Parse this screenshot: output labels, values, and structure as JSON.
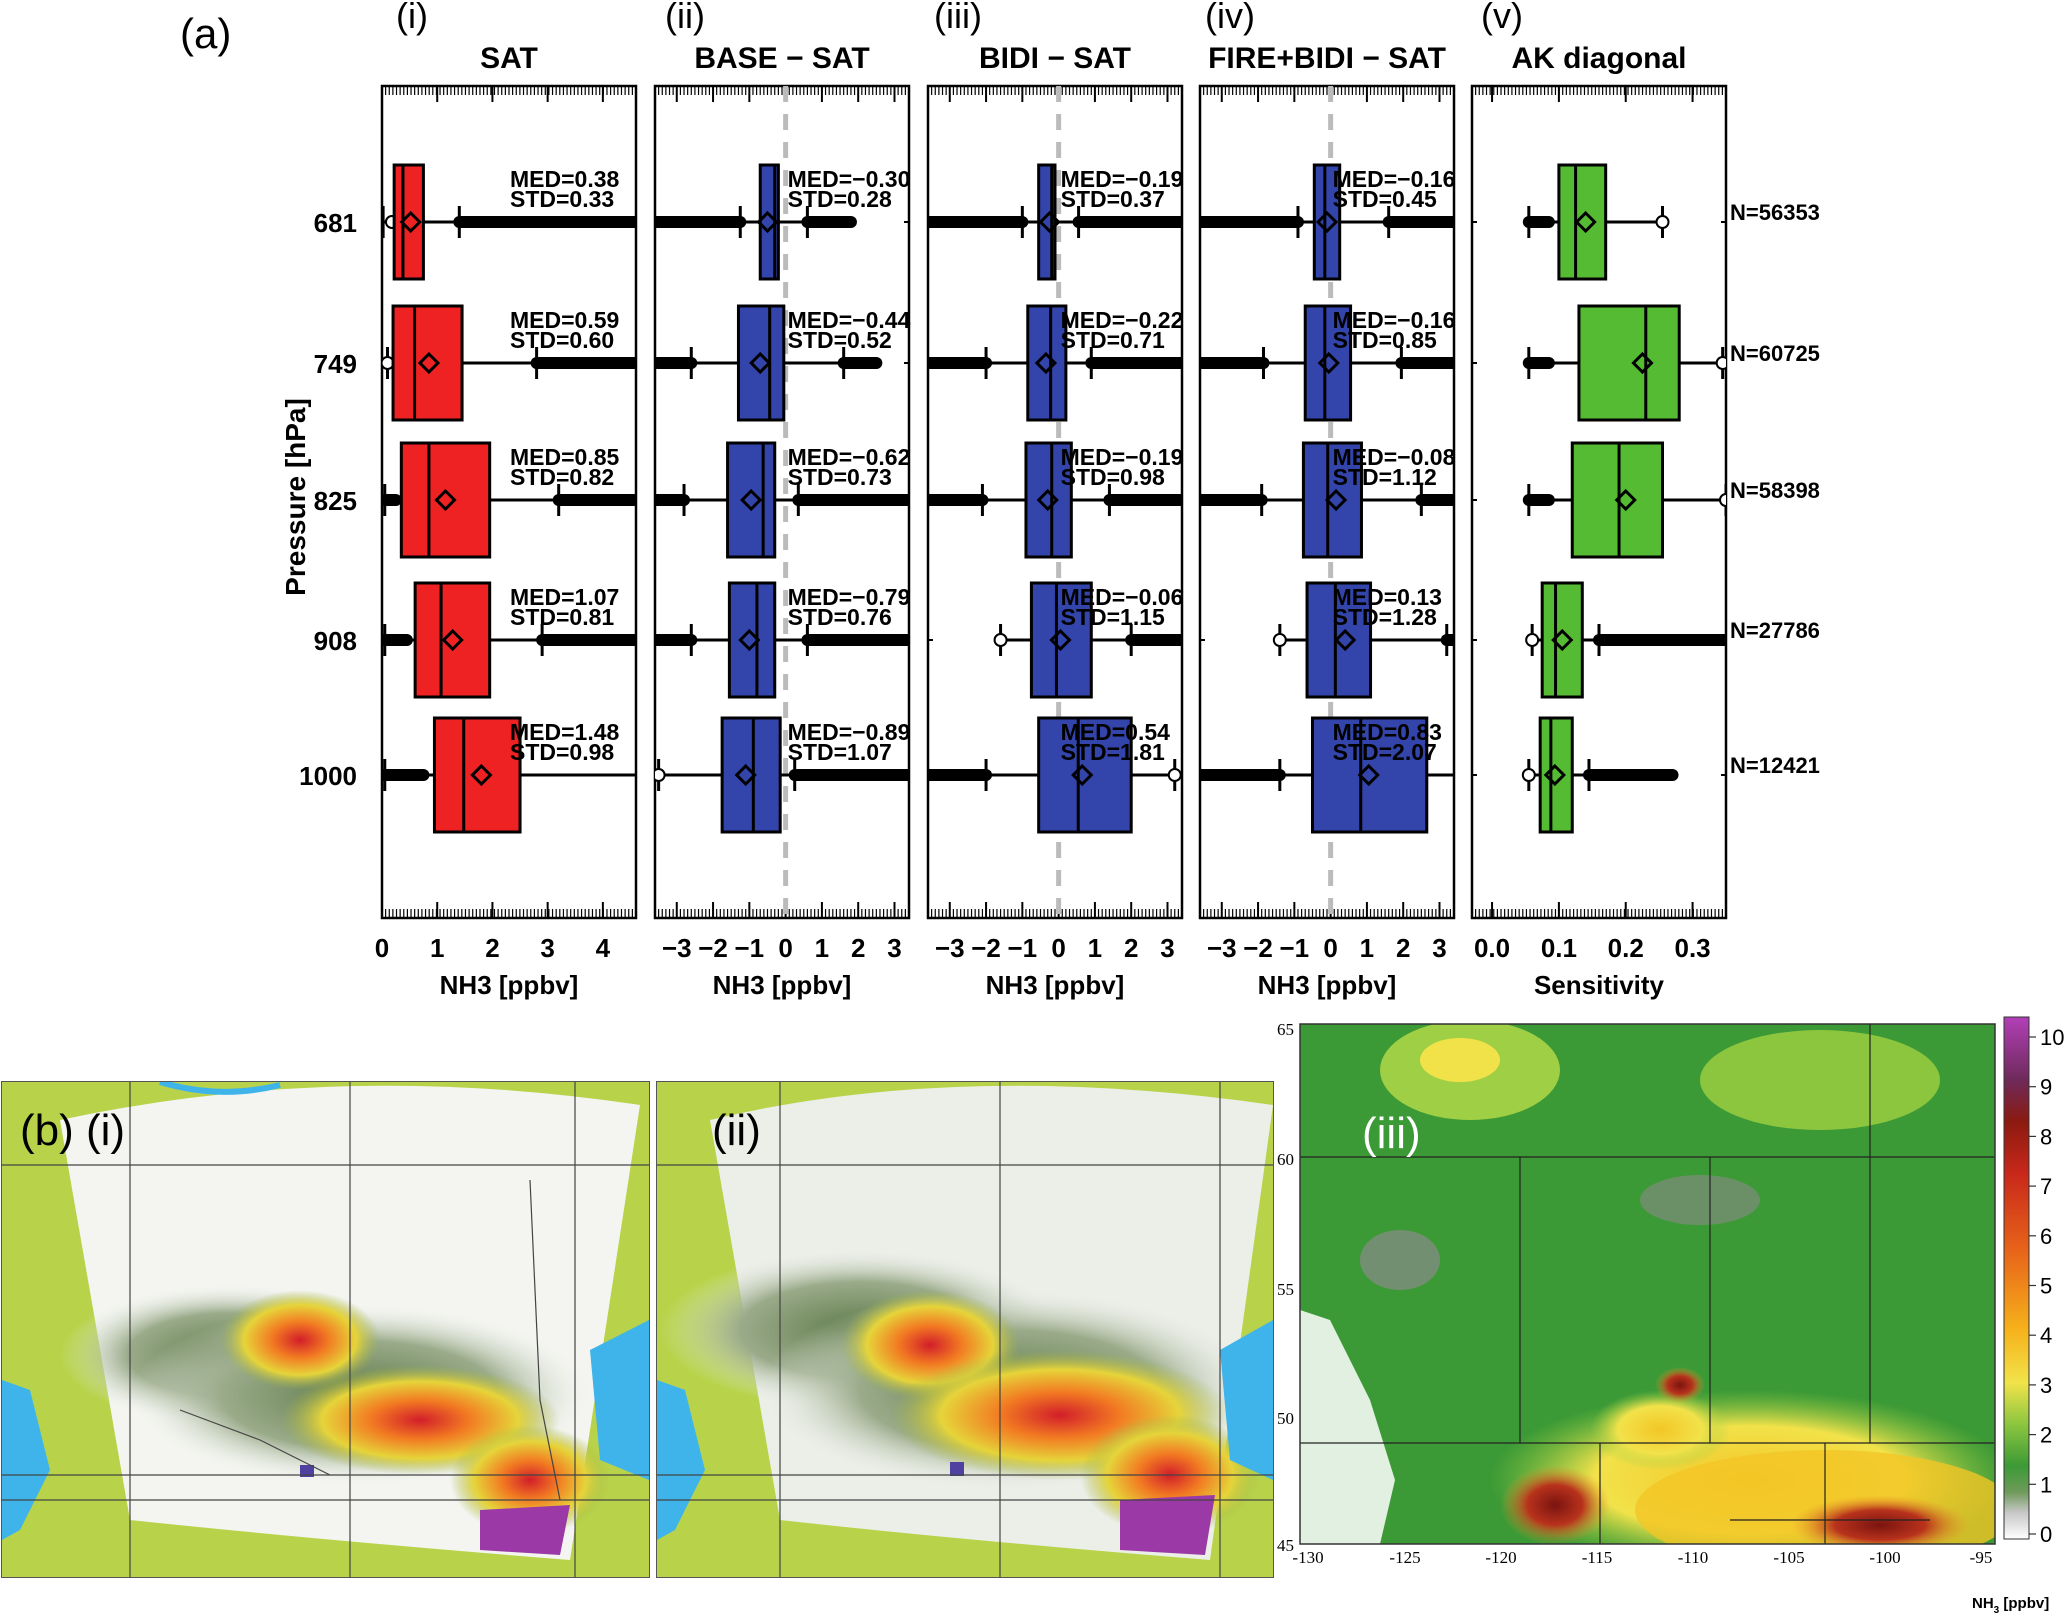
{
  "panel_a": {
    "label": "(a)",
    "ylabel": "Pressure [hPa]",
    "levels": [
      "681",
      "749",
      "825",
      "908",
      "1000"
    ],
    "n_labels": [
      "N=56353",
      "N=60725",
      "N=58398",
      "N=27786",
      "N=12421"
    ]
  },
  "chart_data": [
    {
      "type": "box",
      "numeral": "(i)",
      "title": "SAT",
      "xlabel": "NH3 [ppbv]",
      "xlim": [
        0,
        4.6
      ],
      "xticks": [
        0,
        1,
        2,
        3,
        4
      ],
      "xtick_labels": [
        "0",
        "1",
        "2",
        "3",
        "4"
      ],
      "color": "#ee2222",
      "zero_line": false,
      "boxes": [
        {
          "level": "681",
          "q1": 0.22,
          "median": 0.38,
          "q3": 0.75,
          "mean": 0.52,
          "wlo": 0.02,
          "whi": 1.4,
          "flo": [
            0.18
          ],
          "fhi": [
            1.4,
            4.6
          ],
          "med_label": "MED=0.38",
          "std_label": "STD=0.33"
        },
        {
          "level": "749",
          "q1": 0.2,
          "median": 0.59,
          "q3": 1.45,
          "mean": 0.85,
          "wlo": 0.1,
          "whi": 2.8,
          "flo": [
            0.1
          ],
          "fhi": [
            2.8,
            4.6
          ],
          "med_label": "MED=0.59",
          "std_label": "STD=0.60"
        },
        {
          "level": "825",
          "q1": 0.35,
          "median": 0.85,
          "q3": 1.95,
          "mean": 1.15,
          "wlo": 0.05,
          "whi": 3.2,
          "flo": [
            0.05,
            0.25
          ],
          "fhi": [
            3.2,
            4.6
          ],
          "med_label": "MED=0.85",
          "std_label": "STD=0.82"
        },
        {
          "level": "908",
          "q1": 0.6,
          "median": 1.07,
          "q3": 1.95,
          "mean": 1.28,
          "wlo": 0.05,
          "whi": 2.9,
          "flo": [
            0.05,
            0.45
          ],
          "fhi": [
            2.9,
            4.6
          ],
          "med_label": "MED=1.07",
          "std_label": "STD=0.81"
        },
        {
          "level": "1000",
          "q1": 0.95,
          "median": 1.48,
          "q3": 2.5,
          "mean": 1.8,
          "wlo": 0.05,
          "whi": 4.85,
          "flo": [
            0.05,
            0.75
          ],
          "fhi": [],
          "med_label": "MED=1.48",
          "std_label": "STD=0.98"
        }
      ]
    },
    {
      "type": "box",
      "numeral": "(ii)",
      "title": "BASE − SAT",
      "xlabel": "NH3 [ppbv]",
      "xlim": [
        -3.6,
        3.4
      ],
      "xticks": [
        -3,
        -2,
        -1,
        0,
        1,
        2,
        3
      ],
      "xtick_labels": [
        "−3",
        "−2",
        "−1",
        "0",
        "1",
        "2",
        "3"
      ],
      "color": "#3344aa",
      "zero_line": true,
      "boxes": [
        {
          "level": "681",
          "q1": -0.7,
          "median": -0.3,
          "q3": -0.2,
          "mean": -0.5,
          "wlo": -1.25,
          "whi": 0.6,
          "flo": [
            -3.6,
            -1.25
          ],
          "fhi": [
            0.6,
            1.8
          ],
          "med_label": "MED=−0.30",
          "std_label": "STD=0.28"
        },
        {
          "level": "749",
          "q1": -1.3,
          "median": -0.44,
          "q3": -0.05,
          "mean": -0.7,
          "wlo": -2.6,
          "whi": 1.6,
          "flo": [
            -3.6,
            -2.6
          ],
          "fhi": [
            1.6,
            2.5
          ],
          "med_label": "MED=−0.44",
          "std_label": "STD=0.52"
        },
        {
          "level": "825",
          "q1": -1.6,
          "median": -0.62,
          "q3": -0.3,
          "mean": -0.95,
          "wlo": -2.8,
          "whi": 0.35,
          "flo": [
            -3.6,
            -2.8
          ],
          "fhi": [
            0.35,
            3.4
          ],
          "med_label": "MED=−0.62",
          "std_label": "STD=0.73"
        },
        {
          "level": "908",
          "q1": -1.55,
          "median": -0.79,
          "q3": -0.3,
          "mean": -1.0,
          "wlo": -2.6,
          "whi": 0.6,
          "flo": [
            -3.6,
            -2.6
          ],
          "fhi": [
            0.6,
            3.4
          ],
          "med_label": "MED=−0.79",
          "std_label": "STD=0.76"
        },
        {
          "level": "1000",
          "q1": -1.75,
          "median": -0.89,
          "q3": -0.15,
          "mean": -1.1,
          "wlo": -3.5,
          "whi": 0.25,
          "flo": [
            -3.5
          ],
          "fhi": [
            0.25,
            3.4
          ],
          "med_label": "MED=−0.89",
          "std_label": "STD=1.07"
        }
      ]
    },
    {
      "type": "box",
      "numeral": "(iii)",
      "title": "BIDI − SAT",
      "xlabel": "NH3 [ppbv]",
      "xlim": [
        -3.6,
        3.4
      ],
      "xticks": [
        -3,
        -2,
        -1,
        0,
        1,
        2,
        3
      ],
      "xtick_labels": [
        "−3",
        "−2",
        "−1",
        "0",
        "1",
        "2",
        "3"
      ],
      "color": "#3344aa",
      "zero_line": true,
      "boxes": [
        {
          "level": "681",
          "q1": -0.55,
          "median": -0.19,
          "q3": -0.1,
          "mean": -0.25,
          "wlo": -1.0,
          "whi": 0.55,
          "flo": [
            -3.6,
            -1.0
          ],
          "fhi": [
            0.55,
            3.4
          ],
          "med_label": "MED=−0.19",
          "std_label": "STD=0.37"
        },
        {
          "level": "749",
          "q1": -0.85,
          "median": -0.22,
          "q3": 0.2,
          "mean": -0.35,
          "wlo": -2.0,
          "whi": 0.9,
          "flo": [
            -3.6,
            -2.0
          ],
          "fhi": [
            0.9,
            3.4
          ],
          "med_label": "MED=−0.22",
          "std_label": "STD=0.71"
        },
        {
          "level": "825",
          "q1": -0.9,
          "median": -0.19,
          "q3": 0.35,
          "mean": -0.3,
          "wlo": -2.1,
          "whi": 1.4,
          "flo": [
            -3.6,
            -2.1
          ],
          "fhi": [
            1.4,
            3.4
          ],
          "med_label": "MED=−0.19",
          "std_label": "STD=0.98"
        },
        {
          "level": "908",
          "q1": -0.75,
          "median": -0.06,
          "q3": 0.9,
          "mean": 0.05,
          "wlo": -1.6,
          "whi": 2.0,
          "flo": [
            -1.6
          ],
          "fhi": [
            2.0,
            3.4
          ],
          "med_label": "MED=−0.06",
          "std_label": "STD=1.15"
        },
        {
          "level": "1000",
          "q1": -0.55,
          "median": 0.54,
          "q3": 2.0,
          "mean": 0.65,
          "wlo": -2.0,
          "whi": 3.2,
          "flo": [
            -3.6,
            -2.0
          ],
          "fhi": [
            3.2
          ],
          "med_label": "MED=0.54",
          "std_label": "STD=1.81"
        }
      ]
    },
    {
      "type": "box",
      "numeral": "(iv)",
      "title": "FIRE+BIDI − SAT",
      "xlabel": "NH3 [ppbv]",
      "xlim": [
        -3.6,
        3.4
      ],
      "xticks": [
        -3,
        -2,
        -1,
        0,
        1,
        2,
        3
      ],
      "xtick_labels": [
        "−3",
        "−2",
        "−1",
        "0",
        "1",
        "2",
        "3"
      ],
      "color": "#3344aa",
      "zero_line": true,
      "boxes": [
        {
          "level": "681",
          "q1": -0.45,
          "median": -0.16,
          "q3": 0.25,
          "mean": -0.1,
          "wlo": -0.9,
          "whi": 1.6,
          "flo": [
            -3.6,
            -0.9
          ],
          "fhi": [
            1.6,
            3.4
          ],
          "med_label": "MED=−0.16",
          "std_label": "STD=0.45"
        },
        {
          "level": "749",
          "q1": -0.7,
          "median": -0.16,
          "q3": 0.55,
          "mean": -0.05,
          "wlo": -1.85,
          "whi": 1.95,
          "flo": [
            -3.6,
            -1.85
          ],
          "fhi": [
            1.95,
            3.4
          ],
          "med_label": "MED=−0.16",
          "std_label": "STD=0.85"
        },
        {
          "level": "825",
          "q1": -0.75,
          "median": -0.08,
          "q3": 0.85,
          "mean": 0.15,
          "wlo": -1.9,
          "whi": 2.5,
          "flo": [
            -3.6,
            -1.9
          ],
          "fhi": [
            2.5,
            3.4
          ],
          "med_label": "MED=−0.08",
          "std_label": "STD=1.12"
        },
        {
          "level": "908",
          "q1": -0.65,
          "median": 0.13,
          "q3": 1.1,
          "mean": 0.4,
          "wlo": -1.4,
          "whi": 3.2,
          "flo": [
            -1.4
          ],
          "fhi": [
            3.2,
            3.4
          ],
          "med_label": "MED=0.13",
          "std_label": "STD=1.28"
        },
        {
          "level": "1000",
          "q1": -0.5,
          "median": 0.83,
          "q3": 2.65,
          "mean": 1.05,
          "wlo": -1.4,
          "whi": 4.6,
          "flo": [
            -3.6,
            -1.4
          ],
          "fhi": [],
          "med_label": "MED=0.83",
          "std_label": "STD=2.07"
        }
      ]
    },
    {
      "type": "box",
      "numeral": "(v)",
      "title": "AK diagonal",
      "xlabel": "Sensitivity",
      "xlim": [
        -0.03,
        0.35
      ],
      "xticks": [
        0.0,
        0.1,
        0.2,
        0.3
      ],
      "xtick_labels": [
        "0.0",
        "0.1",
        "0.2",
        "0.3"
      ],
      "color": "#55bb33",
      "zero_line": false,
      "boxes": [
        {
          "level": "681",
          "q1": 0.1,
          "median": 0.125,
          "q3": 0.17,
          "mean": 0.14,
          "wlo": 0.055,
          "whi": 0.255,
          "flo": [
            0.055,
            0.085
          ],
          "fhi": [
            0.255
          ],
          "med_label": "",
          "std_label": ""
        },
        {
          "level": "749",
          "q1": 0.13,
          "median": 0.23,
          "q3": 0.28,
          "mean": 0.225,
          "wlo": 0.055,
          "whi": 0.345,
          "flo": [
            0.055,
            0.085
          ],
          "fhi": [
            0.345
          ],
          "med_label": "",
          "std_label": ""
        },
        {
          "level": "825",
          "q1": 0.12,
          "median": 0.19,
          "q3": 0.255,
          "mean": 0.2,
          "wlo": 0.055,
          "whi": 0.35,
          "flo": [
            0.055,
            0.085
          ],
          "fhi": [
            0.35
          ],
          "med_label": "",
          "std_label": ""
        },
        {
          "level": "908",
          "q1": 0.075,
          "median": 0.095,
          "q3": 0.135,
          "mean": 0.105,
          "wlo": 0.06,
          "whi": 0.16,
          "flo": [
            0.06
          ],
          "fhi": [
            0.16,
            0.35
          ],
          "med_label": "",
          "std_label": ""
        },
        {
          "level": "1000",
          "q1": 0.072,
          "median": 0.088,
          "q3": 0.12,
          "mean": 0.094,
          "wlo": 0.055,
          "whi": 0.145,
          "flo": [
            0.055
          ],
          "fhi": [
            0.145,
            0.27
          ],
          "med_label": "",
          "std_label": ""
        }
      ]
    }
  ],
  "panel_b": {
    "label_i": "(b) (i)",
    "label_ii": "(ii)",
    "label_iii": "(iii)",
    "lon_labels": [
      "-130",
      "-125",
      "-120",
      "-115",
      "-110",
      "-105",
      "-100",
      "-95"
    ],
    "lat_labels": [
      "65",
      "60",
      "55",
      "50",
      "45"
    ],
    "colorbar_ticks": [
      "10",
      "9",
      "8",
      "7",
      "6",
      "5",
      "4",
      "3",
      "2",
      "1",
      "0"
    ],
    "colorbar_unit": "NH",
    "colorbar_unit_sub": "3",
    "colorbar_unit_rest": " [ppbv]",
    "colors": {
      "land": "#b8d34a",
      "water": "#3fb4ea",
      "purple": "#9b3aa6",
      "dark_red": "#8b1a10",
      "green": "#3c9a36"
    }
  }
}
